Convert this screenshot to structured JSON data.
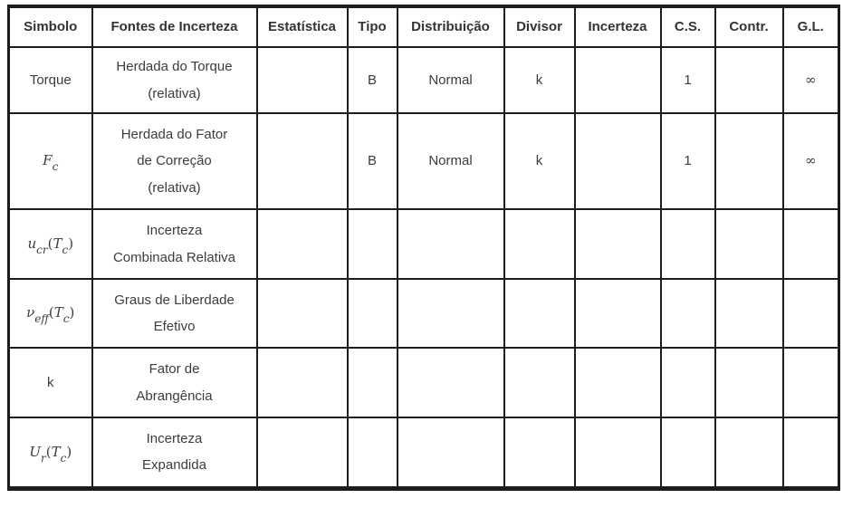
{
  "table": {
    "columns": [
      "Simbolo",
      "Fontes de Incerteza",
      "Estatística",
      "Tipo",
      "Distribuição",
      "Divisor",
      "Incerteza",
      "C.S.",
      "Contr.",
      "G.L."
    ],
    "rows": [
      {
        "symbol": {
          "math": false,
          "tex": "Torque"
        },
        "source_lines": [
          "Herdada do Torque",
          "(relativa)"
        ],
        "estatistica": "",
        "tipo": "B",
        "distribuicao": "Normal",
        "divisor": "k",
        "incerteza": "",
        "cs": "1",
        "contr": "",
        "gl": "∞"
      },
      {
        "symbol": {
          "math": true,
          "tex": "F_{c}"
        },
        "source_lines": [
          "Herdada do Fator",
          "de Correção",
          "(relativa)"
        ],
        "estatistica": "",
        "tipo": "B",
        "distribuicao": "Normal",
        "divisor": "k",
        "incerteza": "",
        "cs": "1",
        "contr": "",
        "gl": "∞"
      },
      {
        "symbol": {
          "math": true,
          "tex": "u_{cr}(T_{c})"
        },
        "source_lines": [
          "Incerteza",
          "Combinada Relativa"
        ],
        "estatistica": "",
        "tipo": "",
        "distribuicao": "",
        "divisor": "",
        "incerteza": "",
        "cs": "",
        "contr": "",
        "gl": ""
      },
      {
        "symbol": {
          "math": true,
          "tex": "ν_{eff}(T_{c})"
        },
        "source_lines": [
          "Graus de Liberdade",
          "Efetivo"
        ],
        "estatistica": "",
        "tipo": "",
        "distribuicao": "",
        "divisor": "",
        "incerteza": "",
        "cs": "",
        "contr": "",
        "gl": ""
      },
      {
        "symbol": {
          "math": false,
          "tex": "k"
        },
        "source_lines": [
          "Fator de",
          "Abrangência"
        ],
        "estatistica": "",
        "tipo": "",
        "distribuicao": "",
        "divisor": "",
        "incerteza": "",
        "cs": "",
        "contr": "",
        "gl": ""
      },
      {
        "symbol": {
          "math": true,
          "tex": "U_{r}(T_{c})"
        },
        "source_lines": [
          "Incerteza",
          "Expandida"
        ],
        "estatistica": "",
        "tipo": "",
        "distribuicao": "",
        "divisor": "",
        "incerteza": "",
        "cs": "",
        "contr": "",
        "gl": ""
      }
    ]
  },
  "colors": {
    "border": "#1d1d1d",
    "text": "#3c3c3c",
    "header_text": "#333333",
    "background": "#ffffff"
  }
}
